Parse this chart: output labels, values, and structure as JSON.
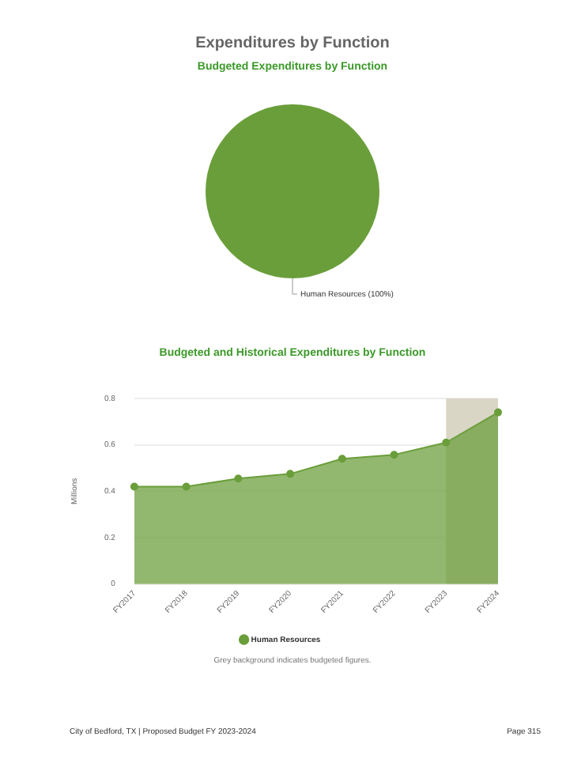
{
  "chart_data": [
    {
      "type": "pie",
      "title": "Expenditures by Function",
      "subtitle": "Budgeted Expenditures by Function",
      "categories": [
        "Human Resources"
      ],
      "values": [
        100
      ],
      "colors": [
        "#6a9e3a"
      ],
      "value_labels": [
        "(100%)"
      ]
    },
    {
      "type": "area",
      "title": "Budgeted and Historical Expenditures by Function",
      "ylabel": "Millions",
      "categories": [
        "FY2017",
        "FY2018",
        "FY2019",
        "FY2020",
        "FY2021",
        "FY2022",
        "FY2023",
        "FY2024"
      ],
      "series": [
        {
          "name": "Human Resources",
          "color": "#6a9e3a",
          "values": [
            0.42,
            0.42,
            0.455,
            0.475,
            0.54,
            0.557,
            0.61,
            0.74
          ]
        }
      ],
      "ylim": [
        0,
        0.8
      ],
      "yticks": [
        0,
        0.2,
        0.4,
        0.6,
        0.8
      ],
      "grid": "y",
      "legend": "bottom",
      "marker": "circle",
      "bands": [
        {
          "axis": "x",
          "from": "FY2023",
          "to": "FY2024",
          "color": "#d9d6c6"
        }
      ],
      "annotations": [
        "Grey background indicates budgeted figures.",
        "City of Bedford, TX | Proposed Budget FY 2023-2024",
        "Page 315"
      ]
    }
  ]
}
